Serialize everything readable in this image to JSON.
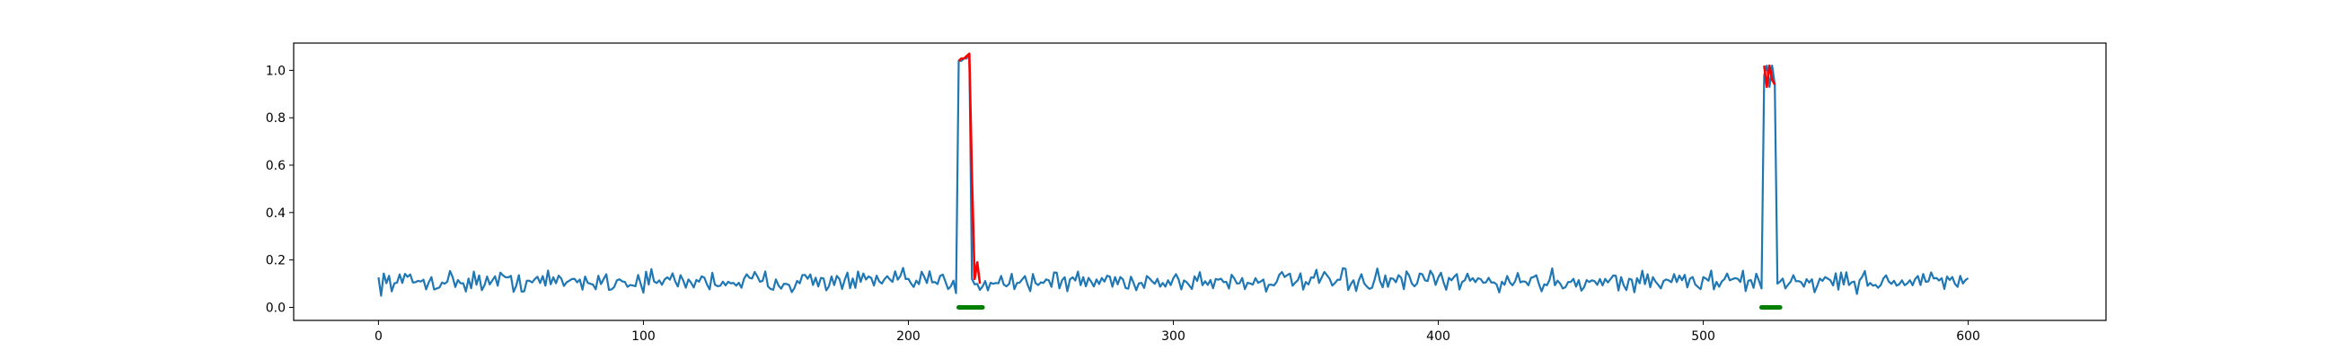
{
  "chart_data": {
    "type": "line",
    "title": "",
    "xlabel": "",
    "ylabel": "",
    "xlim": [
      -32,
      652
    ],
    "ylim": [
      -0.055,
      1.115
    ],
    "grid": false,
    "x_ticks": [
      0,
      100,
      200,
      300,
      400,
      500,
      600
    ],
    "x_tick_labels": [
      "0",
      "100",
      "200",
      "300",
      "400",
      "500",
      "600"
    ],
    "y_ticks": [
      0.0,
      0.2,
      0.4,
      0.6,
      0.8,
      1.0
    ],
    "y_tick_labels": [
      "0.0",
      "0.2",
      "0.4",
      "0.6",
      "0.8",
      "1.0"
    ],
    "series": [
      {
        "role": "signal",
        "color": "#1f77b4",
        "x_start": 0,
        "x_end": 600,
        "baseline_mean": 0.11,
        "baseline_spread": 0.05,
        "peaks": [
          {
            "x": [
              218,
              219,
              220,
              221,
              222,
              223,
              224
            ],
            "y": [
              0.06,
              1.04,
              1.04,
              1.05,
              1.05,
              1.07,
              0.12
            ]
          },
          {
            "x": [
              522,
              523,
              524,
              525,
              526,
              527,
              528
            ],
            "y": [
              0.08,
              0.98,
              1.02,
              0.93,
              1.02,
              0.94,
              0.1
            ]
          }
        ]
      },
      {
        "role": "highlighted-segments",
        "color": "#ff0000",
        "segments": [
          {
            "x": [
              219,
              220,
              221,
              222,
              223,
              224,
              225,
              226,
              227
            ],
            "y": [
              1.04,
              1.05,
              1.05,
              1.06,
              1.07,
              0.55,
              0.12,
              0.19,
              0.1
            ]
          },
          {
            "x": [
              523,
              524,
              525,
              526,
              527
            ],
            "y": [
              1.02,
              0.93,
              1.02,
              0.96,
              0.94
            ]
          }
        ]
      },
      {
        "role": "marker-segments",
        "color": "#008000",
        "segments": [
          {
            "x": [
              219,
              228
            ],
            "y": [
              0.0,
              0.0
            ]
          },
          {
            "x": [
              522,
              529
            ],
            "y": [
              0.0,
              0.0
            ]
          }
        ]
      }
    ]
  }
}
